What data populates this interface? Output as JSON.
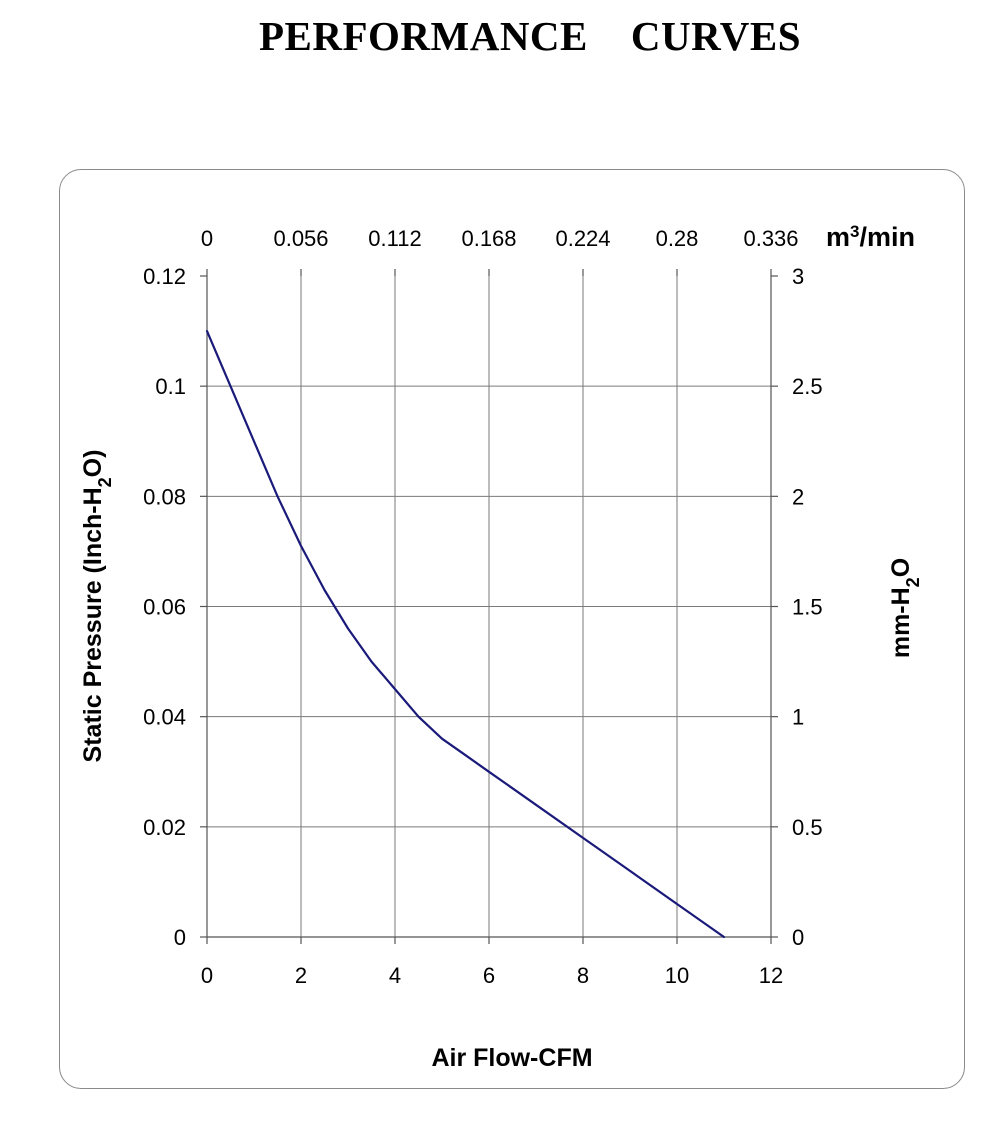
{
  "title": "PERFORMANCE    CURVES",
  "chart_data": {
    "type": "line",
    "xlabel": "Air Flow-CFM",
    "ylabel": "Static Pressure (Inch-H2O)",
    "ylabel_main": "Static Pressure (Inch-H",
    "ylabel_sub": "2",
    "ylabel_end": "O)",
    "y2label_main": "mm-H",
    "y2label_sub": "2",
    "y2label_end": "O",
    "x2unit_main": "m",
    "x2unit_sup": "3",
    "x2unit_end": "/min",
    "xlim": [
      0,
      12
    ],
    "ylim": [
      0,
      0.12
    ],
    "x_ticks": [
      "0",
      "2",
      "4",
      "6",
      "8",
      "10",
      "12"
    ],
    "y_ticks": [
      "0",
      "0.02",
      "0.04",
      "0.06",
      "0.08",
      "0.1",
      "0.12"
    ],
    "x2_ticks": [
      "0",
      "0.056",
      "0.112",
      "0.168",
      "0.224",
      "0.28",
      "0.336"
    ],
    "y2_ticks": [
      "0",
      "0.5",
      "1",
      "1.5",
      "2",
      "2.5",
      "3"
    ],
    "grid": true,
    "line_color": "#1a1a7a",
    "series": [
      {
        "x": [
          0,
          0.5,
          1,
          1.5,
          2,
          2.5,
          3,
          3.5,
          4,
          4.5,
          5,
          5.5,
          6,
          7,
          8,
          9,
          10,
          11
        ],
        "values": [
          0.11,
          0.1,
          0.09,
          0.08,
          0.071,
          0.063,
          0.056,
          0.05,
          0.045,
          0.04,
          0.036,
          0.033,
          0.03,
          0.024,
          0.018,
          0.012,
          0.006,
          0.0
        ]
      }
    ]
  }
}
